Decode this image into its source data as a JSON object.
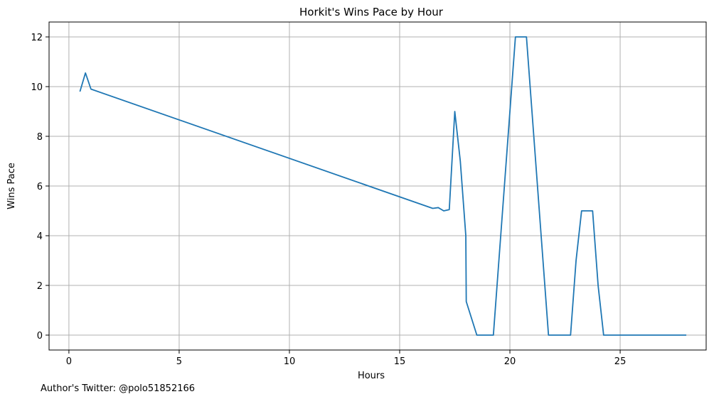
{
  "chart_data": {
    "type": "line",
    "title": "Horkit's Wins Pace by Hour",
    "xlabel": "Hours",
    "ylabel": "Wins Pace",
    "xlim": [
      -0.9,
      28.9
    ],
    "ylim": [
      -0.6,
      12.6
    ],
    "xticks": [
      0,
      5,
      10,
      15,
      20,
      25
    ],
    "yticks": [
      0,
      2,
      4,
      6,
      8,
      10,
      12
    ],
    "grid": true,
    "line_color": "#1f77b4",
    "series": [
      {
        "x": [
          0.5,
          0.75,
          1.0,
          16.5,
          16.75,
          17.0,
          17.25,
          17.5,
          17.75,
          18.0,
          18.02,
          18.5,
          19.25,
          20.0,
          20.25,
          20.75,
          21.25,
          21.75,
          22.75,
          23.0,
          23.25,
          23.75,
          24.0,
          24.25,
          25.0,
          28.0
        ],
        "y": [
          9.8,
          10.55,
          9.9,
          5.1,
          5.13,
          5.0,
          5.05,
          9.0,
          7.0,
          4.0,
          1.35,
          0.0,
          0.0,
          9.0,
          12.0,
          12.0,
          6.0,
          0.0,
          0.0,
          3.0,
          5.0,
          5.0,
          2.0,
          0.0,
          0.0,
          0.0
        ]
      }
    ]
  },
  "footnote": "Author's Twitter: @polo51852166"
}
